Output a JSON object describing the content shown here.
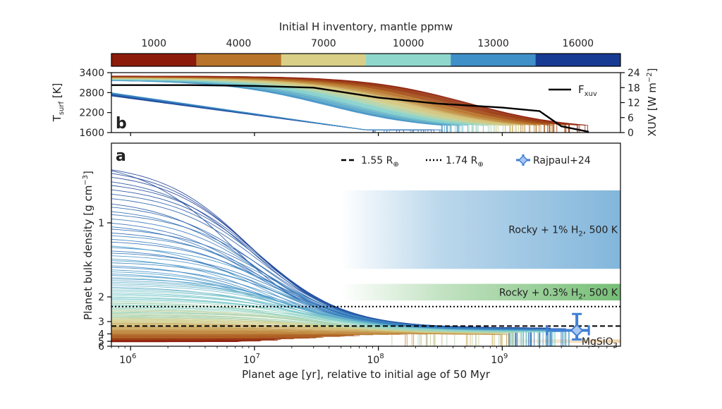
{
  "colorbar": {
    "title": "Initial H inventory, mantle ppmw",
    "ticks": [
      "1000",
      "4000",
      "7000",
      "10000",
      "13000",
      "16000"
    ],
    "colors": [
      "#8c1b0c",
      "#b8742a",
      "#d9cf86",
      "#8fd7cd",
      "#3f8fc8",
      "#173a93"
    ]
  },
  "chart_data": [
    {
      "panel": "b",
      "panel_label": "b",
      "type": "line",
      "xscale": "log",
      "xlim": [
        700000,
        9000000000
      ],
      "ylim": [
        1600,
        3400
      ],
      "yticks": [
        "3400",
        "2800",
        "2200",
        "1600"
      ],
      "ylabel_main": "T",
      "ylabel_sub": "surf",
      "ylabel_unit": " [K]",
      "y2lim": [
        0,
        24
      ],
      "y2ticks": [
        "24",
        "18",
        "12",
        "6",
        "0"
      ],
      "y2label": "XUV [W m",
      "y2label_sup": "−2",
      "y2label_end": "]",
      "legend": {
        "line": "F",
        "sub": "xuv"
      },
      "xuv_curve": {
        "x": [
          700000,
          3000000,
          10000000,
          30000000,
          100000000,
          300000000,
          1000000000,
          2000000000,
          3000000000,
          5000000000
        ],
        "y": [
          19.0,
          19.0,
          18.7,
          18.0,
          14.0,
          11.6,
          10.0,
          8.6,
          2.5,
          0.3
        ]
      }
    },
    {
      "panel": "a",
      "panel_label": "a",
      "type": "line",
      "xscale": "log",
      "yscale": "reciprocal",
      "xlim": [
        700000,
        9000000000
      ],
      "ylim": [
        0.65,
        6
      ],
      "yticks": [
        "1",
        "2",
        "3",
        "4",
        "5",
        "6"
      ],
      "xticks": [
        "10",
        "10",
        "10",
        "10"
      ],
      "xtick_exps": [
        "6",
        "7",
        "8",
        "9"
      ],
      "xlabel": "Planet age [yr], relative to initial age of 50 Myr",
      "ylabel": "Planet bulk density [g cm",
      "ylabel_sup": "−3",
      "ylabel_end": "]",
      "hlines": [
        {
          "y": 3.3,
          "style": "dashed",
          "label": "1.55 R",
          "sub": "⊕"
        },
        {
          "y": 2.3,
          "style": "dotted",
          "label": "1.74 R",
          "sub": "⊕"
        }
      ],
      "observation": {
        "label": "Rajpaul+24",
        "x": 4000000000,
        "y": 3.65,
        "y_low": 2.6,
        "y_high": 4.7,
        "x_low": 2300000000,
        "x_high": 5000000000
      },
      "bands": [
        {
          "label": "Rocky + 1% H",
          "sub": "2",
          "end": ", 500 K",
          "y_top": 0.82,
          "y_bottom": 1.45,
          "color": "#3f8fc8"
        },
        {
          "label": "Rocky + 0.3% H",
          "sub": "2",
          "end": ", 500 K",
          "y_top": 1.7,
          "y_bottom": 2.1,
          "color": "#3aa23a"
        },
        {
          "label": "MgSiO",
          "sub": "3",
          "end": "",
          "y_top": 4.7,
          "y_bottom": 5.3,
          "color": "#e3b06c"
        }
      ]
    }
  ]
}
